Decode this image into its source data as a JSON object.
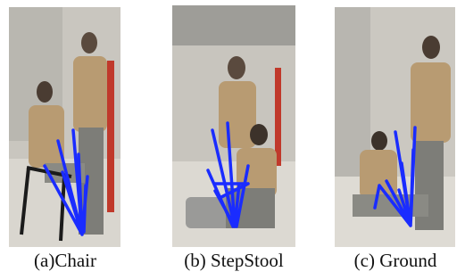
{
  "figure": {
    "panels": [
      {
        "caption": "(a)Chair"
      },
      {
        "caption": "(b) StepStool"
      },
      {
        "caption": "(c) Ground"
      }
    ]
  }
}
